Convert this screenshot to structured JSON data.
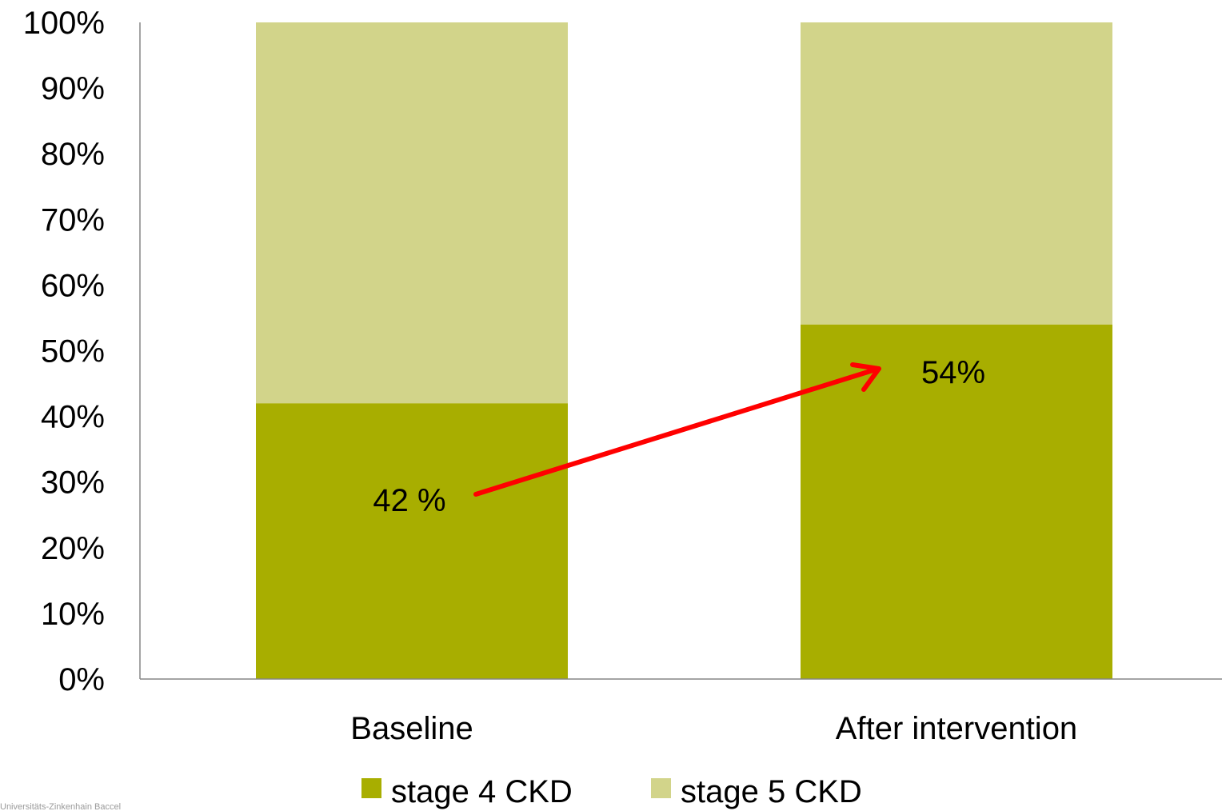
{
  "chart_data": {
    "type": "bar",
    "stacked": true,
    "percent_stacked": true,
    "categories": [
      "Baseline",
      "After intervention"
    ],
    "series": [
      {
        "name": "stage 4 CKD",
        "values": [
          42,
          54
        ],
        "color": "#a8ae00"
      },
      {
        "name": "stage 5 CKD",
        "values": [
          58,
          46
        ],
        "color": "#d2d48a"
      }
    ],
    "data_labels": [
      "42 %",
      "54%"
    ],
    "yticks": [
      "0%",
      "10%",
      "20%",
      "30%",
      "40%",
      "50%",
      "60%",
      "70%",
      "80%",
      "90%",
      "100%"
    ],
    "ylim": [
      0,
      100
    ],
    "grid": false,
    "legend_position": "bottom",
    "annotation": {
      "type": "arrow",
      "from": "Baseline",
      "to": "After intervention",
      "color": "#ff0000"
    }
  },
  "footer": {
    "text": "Universitäts-Zinkenhain Baccel"
  }
}
